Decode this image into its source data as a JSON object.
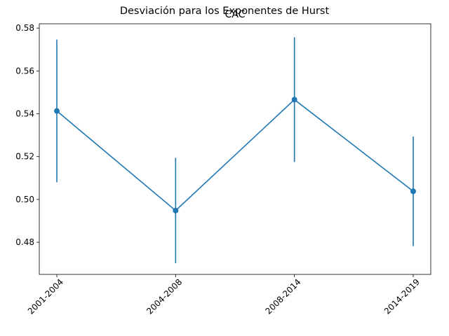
{
  "chart_data": {
    "type": "line",
    "suptitle": "Desviación para los Exponentes de Hurst",
    "title": "CAC",
    "xlabel": "",
    "ylabel": "",
    "categories": [
      "2001-2004",
      "2004-2008",
      "2008-2014",
      "2014-2019"
    ],
    "values": [
      0.5413,
      0.4948,
      0.5466,
      0.5038
    ],
    "errors": [
      0.0333,
      0.0246,
      0.0291,
      0.0256
    ],
    "ylim": [
      0.465,
      0.582
    ],
    "yticks": [
      0.48,
      0.5,
      0.52,
      0.54,
      0.56,
      0.58
    ],
    "ytick_labels": [
      "0.48",
      "0.50",
      "0.52",
      "0.54",
      "0.56",
      "0.58"
    ],
    "grid": false,
    "marker": "circle",
    "color": "#1f77b4"
  }
}
